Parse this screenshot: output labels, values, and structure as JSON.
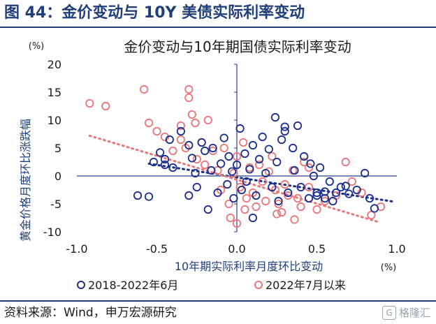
{
  "figure_title": "图 44：金价变动与 10Y 美债实际利率变动",
  "source": "资料来源：Wind，申万宏源研究",
  "watermark": {
    "icon": "gelonghui-logo-icon",
    "text": "格隆汇",
    "badge": "G"
  },
  "colors": {
    "header": "#1f3f7a",
    "series_2018": "#1a2f8a",
    "series_2022": "#e8777a"
  },
  "chart_data": {
    "type": "scatter",
    "title": "金价变动与10年期国债实际利率变动",
    "xlabel": "10年期实际利率月度环比变动",
    "ylabel": "黄金价格月度环比涨跌幅",
    "x_unit": "(%)",
    "y_unit": "(%)",
    "xlim": [
      -1.0,
      1.0
    ],
    "ylim": [
      -10,
      20
    ],
    "xticks": [
      -1.0,
      -0.5,
      0.0,
      0.5,
      1.0
    ],
    "xtick_labels": [
      "-1.0",
      "-0.5",
      "0.0",
      "0.5",
      "1.0"
    ],
    "yticks": [
      -10,
      -5,
      0,
      5,
      10,
      15,
      20
    ],
    "ytick_labels": [
      "-10",
      "-5",
      "0",
      "5",
      "10",
      "15",
      "20"
    ],
    "grid": false,
    "legend": "bottom",
    "series": [
      {
        "name": "2018-2022年6月",
        "marker": "open-circle",
        "trendline": {
          "x": [
            -0.55,
            0.98
          ],
          "y": [
            2.2,
            -4.6
          ]
        },
        "points": [
          [
            -0.62,
            -3.5
          ],
          [
            -0.55,
            -3.7
          ],
          [
            -0.52,
            2.5
          ],
          [
            -0.48,
            4.2
          ],
          [
            -0.45,
            3.0
          ],
          [
            -0.42,
            6.5
          ],
          [
            -0.4,
            1.5
          ],
          [
            -0.35,
            8.0
          ],
          [
            -0.3,
            5.5
          ],
          [
            -0.28,
            3.2
          ],
          [
            -0.26,
            0.5
          ],
          [
            -0.25,
            -2.0
          ],
          [
            -0.22,
            6.0
          ],
          [
            -0.2,
            4.5
          ],
          [
            -0.18,
            -6.0
          ],
          [
            -0.16,
            1.0
          ],
          [
            -0.15,
            5.0
          ],
          [
            -0.12,
            -3.0
          ],
          [
            -0.1,
            2.2
          ],
          [
            -0.08,
            6.8
          ],
          [
            -0.06,
            -1.5
          ],
          [
            -0.05,
            3.5
          ],
          [
            -0.03,
            0.8
          ],
          [
            -0.02,
            -4.0
          ],
          [
            0.0,
            2.0
          ],
          [
            0.02,
            8.5
          ],
          [
            0.03,
            -2.5
          ],
          [
            0.05,
            4.0
          ],
          [
            0.06,
            -1.0
          ],
          [
            0.08,
            1.2
          ],
          [
            0.1,
            5.5
          ],
          [
            0.12,
            -3.5
          ],
          [
            0.14,
            3.0
          ],
          [
            0.16,
            7.0
          ],
          [
            0.18,
            0.5
          ],
          [
            0.2,
            4.8
          ],
          [
            0.22,
            -2.0
          ],
          [
            0.24,
            10.5
          ],
          [
            0.25,
            2.5
          ],
          [
            0.26,
            -4.5
          ],
          [
            0.28,
            6.5
          ],
          [
            0.3,
            8.0
          ],
          [
            0.32,
            -3.0
          ],
          [
            0.35,
            5.0
          ],
          [
            0.36,
            1.0
          ],
          [
            0.38,
            9.0
          ],
          [
            0.4,
            -2.0
          ],
          [
            0.42,
            3.5
          ],
          [
            0.45,
            -4.0
          ],
          [
            0.46,
            2.2
          ],
          [
            0.48,
            0.0
          ],
          [
            0.5,
            -3.5
          ],
          [
            0.52,
            1.5
          ],
          [
            0.55,
            -2.8
          ],
          [
            0.58,
            -1.0
          ],
          [
            0.6,
            -4.5
          ],
          [
            0.62,
            -3.0
          ],
          [
            0.65,
            -2.0
          ],
          [
            0.68,
            -1.8
          ],
          [
            0.7,
            -3.2
          ],
          [
            0.75,
            -2.5
          ],
          [
            0.8,
            0.5
          ],
          [
            0.83,
            -4.0
          ],
          [
            0.86,
            -5.8
          ],
          [
            0.5,
            -3.0
          ],
          [
            0.55,
            -4.0
          ],
          [
            -0.3,
            -3.5
          ],
          [
            0.1,
            -7.5
          ],
          [
            -0.45,
            2.0
          ],
          [
            0.3,
            8.8
          ]
        ]
      },
      {
        "name": "2022年7月以来",
        "marker": "open-circle",
        "trendline": {
          "x": [
            -0.92,
            0.88
          ],
          "y": [
            7.2,
            -8.2
          ]
        },
        "points": [
          [
            -0.92,
            13.0
          ],
          [
            -0.82,
            12.5
          ],
          [
            -0.58,
            15.5
          ],
          [
            -0.55,
            9.5
          ],
          [
            -0.5,
            8.0
          ],
          [
            -0.45,
            7.0
          ],
          [
            -0.4,
            4.5
          ],
          [
            -0.35,
            6.5
          ],
          [
            -0.32,
            5.0
          ],
          [
            -0.3,
            14.0
          ],
          [
            -0.3,
            15.5
          ],
          [
            -0.28,
            11.0
          ],
          [
            -0.26,
            9.5
          ],
          [
            -0.25,
            3.0
          ],
          [
            -0.22,
            6.0
          ],
          [
            -0.2,
            2.0
          ],
          [
            -0.18,
            10.0
          ],
          [
            -0.15,
            4.5
          ],
          [
            -0.12,
            1.0
          ],
          [
            -0.1,
            -2.5
          ],
          [
            -0.08,
            5.0
          ],
          [
            -0.05,
            -5.0
          ],
          [
            -0.04,
            -7.5
          ],
          [
            -0.02,
            0.5
          ],
          [
            0.0,
            3.5
          ],
          [
            0.02,
            -2.0
          ],
          [
            0.04,
            6.0
          ],
          [
            0.05,
            -6.0
          ],
          [
            0.06,
            -4.0
          ],
          [
            0.08,
            1.5
          ],
          [
            0.1,
            -3.0
          ],
          [
            0.12,
            -5.5
          ],
          [
            0.14,
            2.0
          ],
          [
            0.16,
            -1.0
          ],
          [
            0.18,
            -4.5
          ],
          [
            0.2,
            0.8
          ],
          [
            0.22,
            3.5
          ],
          [
            0.24,
            -2.5
          ],
          [
            0.26,
            -5.0
          ],
          [
            0.28,
            -6.5
          ],
          [
            0.3,
            -1.5
          ],
          [
            0.32,
            -3.5
          ],
          [
            0.35,
            1.0
          ],
          [
            0.38,
            -4.0
          ],
          [
            0.4,
            -5.5
          ],
          [
            0.42,
            2.5
          ],
          [
            0.45,
            -2.0
          ],
          [
            0.5,
            -6.0
          ],
          [
            0.55,
            -4.5
          ],
          [
            0.62,
            -3.5
          ],
          [
            0.68,
            2.5
          ],
          [
            0.72,
            -1.0
          ],
          [
            0.78,
            -3.0
          ],
          [
            0.84,
            -7.0
          ],
          [
            0.9,
            -5.5
          ],
          [
            -0.35,
            9.0
          ],
          [
            0.0,
            -8.5
          ],
          [
            0.45,
            1.5
          ],
          [
            0.36,
            -7.8
          ],
          [
            0.25,
            -6.8
          ]
        ]
      }
    ]
  }
}
